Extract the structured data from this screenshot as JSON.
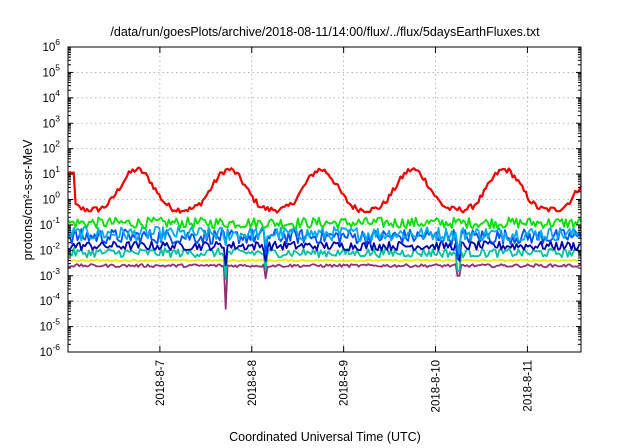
{
  "chart_data": {
    "type": "line",
    "title": "/data/run/goesPlots/archive/2018-08-11/14:00/flux/../flux/5daysEarthFluxes.txt",
    "xlabel": "Coordinated Universal Time (UTC)",
    "ylabel": "protons/cm²-s-sr-MeV",
    "x_ticks": [
      "2018-8-7",
      "2018-8-8",
      "2018-8-9",
      "2018-8-10",
      "2018-8-11"
    ],
    "x_range_days": [
      "2018-8-6 00:00",
      "2018-8-11 14:00"
    ],
    "y_scale": "log",
    "y_ticks": [
      {
        "base": "10",
        "exp": "-6"
      },
      {
        "base": "10",
        "exp": "-5"
      },
      {
        "base": "10",
        "exp": "-4"
      },
      {
        "base": "10",
        "exp": "-3"
      },
      {
        "base": "10",
        "exp": "-2"
      },
      {
        "base": "10",
        "exp": "-1"
      },
      {
        "base": "10",
        "exp": "0"
      },
      {
        "base": "10",
        "exp": "1"
      },
      {
        "base": "10",
        "exp": "2"
      },
      {
        "base": "10",
        "exp": "3"
      },
      {
        "base": "10",
        "exp": "4"
      },
      {
        "base": "10",
        "exp": "5"
      },
      {
        "base": "10",
        "exp": "6"
      }
    ],
    "ylim": [
      1e-06,
      1000000.0
    ],
    "grid": true,
    "series": [
      {
        "color": "#ee0000",
        "kind": "diurnal",
        "min": 0.4,
        "max": 15,
        "noise": 0.12
      },
      {
        "color": "#00e000",
        "kind": "noisy",
        "level": 0.12,
        "noise": 0.22
      },
      {
        "color": "#00aaee",
        "kind": "noisy",
        "level": 0.045,
        "noise": 0.28
      },
      {
        "color": "#0050ff",
        "kind": "noisy",
        "level": 0.035,
        "noise": 0.3
      },
      {
        "color": "#0000aa",
        "kind": "noisy",
        "level": 0.015,
        "noise": 0.18
      },
      {
        "color": "#00c0a0",
        "kind": "noisy",
        "level": 0.008,
        "noise": 0.18
      },
      {
        "color": "#eeee00",
        "kind": "noisy",
        "level": 0.004,
        "noise": 0.04
      },
      {
        "color": "#903070",
        "kind": "noisy",
        "level": 0.0025,
        "noise": 0.06
      }
    ],
    "dips": [
      {
        "day": 1.72,
        "values": [
          0.0025,
          5e-05
        ]
      },
      {
        "day": 2.15,
        "values": [
          0.006,
          0.0008
        ]
      },
      {
        "day": 4.25,
        "values": [
          0.005,
          0.001
        ]
      }
    ]
  }
}
